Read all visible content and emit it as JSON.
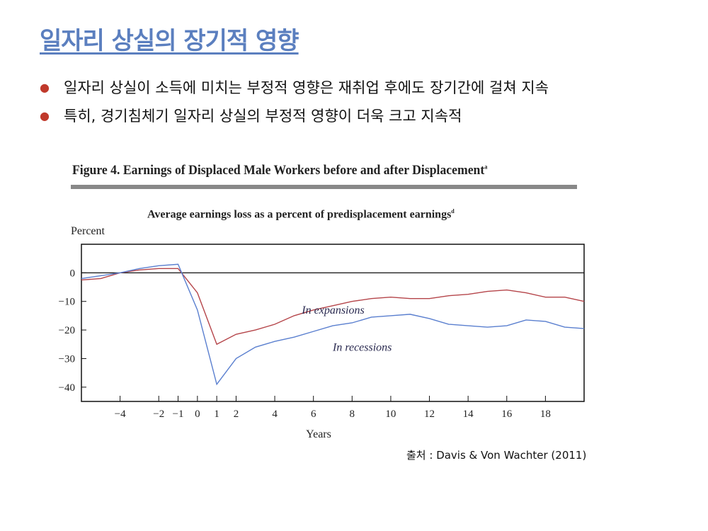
{
  "slide": {
    "title": "일자리 상실의 장기적 영향",
    "bullets": [
      "일자리 상실이 소득에 미치는 부정적 영향은 재취업 후에도 장기간에 걸쳐 지속",
      "특히, 경기침체기 일자리 상실의 부정적 영향이 더욱 크고 지속적"
    ],
    "source": "출처 : Davis & Von Wachter (2011)"
  },
  "colors": {
    "title": "#5b7fbf",
    "bullet": "#c0392b",
    "expansions": "#b5454a",
    "recessions": "#5a7fcf"
  },
  "chart_data": {
    "type": "line",
    "figure_title": "Figure 4.  Earnings of Displaced Male Workers before and after Displacement",
    "figure_title_sup": "a",
    "title": "Average earnings loss as a percent of predisplacement earnings",
    "title_sup": "d",
    "xlabel": "Years",
    "ylabel": "Percent",
    "xlim": [
      -6,
      20
    ],
    "ylim": [
      -45,
      10
    ],
    "xticks": [
      -4,
      -2,
      -1,
      0,
      1,
      2,
      4,
      6,
      8,
      10,
      12,
      14,
      16,
      18
    ],
    "xtick_labels": [
      "−4",
      "−2",
      "−1",
      "0",
      "1",
      "2",
      "4",
      "6",
      "8",
      "10",
      "12",
      "14",
      "16",
      "18"
    ],
    "yticks": [
      0,
      -10,
      -20,
      -30,
      -40
    ],
    "ytick_labels": [
      "0",
      "−10",
      "−20",
      "−30",
      "−40"
    ],
    "x": [
      -6,
      -5,
      -4,
      -3,
      -2,
      -1,
      0,
      1,
      2,
      3,
      4,
      5,
      6,
      7,
      8,
      9,
      10,
      11,
      12,
      13,
      14,
      15,
      16,
      17,
      18,
      19,
      20
    ],
    "series": [
      {
        "name": "In expansions",
        "values": [
          -2.5,
          -2,
          0,
          1,
          1.5,
          1.5,
          -7,
          -25,
          -21.5,
          -20,
          -18,
          -15,
          -13,
          -11.5,
          -10,
          -9,
          -8.5,
          -9,
          -9,
          -8,
          -7.5,
          -6.5,
          -6,
          -7,
          -8.5,
          -8.5,
          -10
        ]
      },
      {
        "name": "In recessions",
        "values": [
          -2,
          -1,
          0,
          1.5,
          2.5,
          3,
          -13,
          -39,
          -30,
          -26,
          -24,
          -22.5,
          -20.5,
          -18.5,
          -17.5,
          -15.5,
          -15,
          -14.5,
          -16,
          -18,
          -18.5,
          -19,
          -18.5,
          -16.5,
          -17,
          -19,
          -19.5
        ]
      }
    ],
    "annotations": [
      {
        "text": "In expansions",
        "x": 5.4,
        "y": -13
      },
      {
        "text": "In recessions",
        "x": 7,
        "y": -26
      }
    ],
    "grid": false,
    "reference_line": 0
  }
}
